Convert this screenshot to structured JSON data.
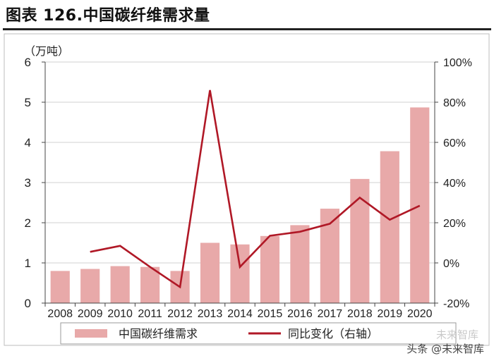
{
  "title": "图表 126.中国碳纤维需求量",
  "watermark": "头条 @未来智库",
  "watermark_ghost": "未来智库",
  "chart_data": {
    "type": "bar",
    "categories": [
      "2008",
      "2009",
      "2010",
      "2011",
      "2012",
      "2013",
      "2014",
      "2015",
      "2016",
      "2017",
      "2018",
      "2019",
      "2020"
    ],
    "series": [
      {
        "name": "中国碳纤维需求",
        "type": "bar",
        "axis": "left",
        "color": "#E8A9A9",
        "values": [
          0.8,
          0.85,
          0.92,
          0.9,
          0.8,
          1.5,
          1.46,
          1.67,
          1.94,
          2.35,
          3.09,
          3.78,
          4.87
        ]
      },
      {
        "name": "同比变化（右轴）",
        "type": "line",
        "axis": "right",
        "color": "#B01826",
        "values": [
          null,
          5.5,
          8.5,
          -2,
          -12,
          86,
          -2,
          13.5,
          15.5,
          19.5,
          32.5,
          21.5,
          28.5
        ]
      }
    ],
    "y_left": {
      "unit_label": "（万吨）",
      "ylim": [
        0,
        6
      ],
      "ticks": [
        "0",
        "1",
        "2",
        "3",
        "4",
        "5",
        "6"
      ]
    },
    "y_right": {
      "ylim": [
        -20,
        100
      ],
      "ticks": [
        "-20%",
        "0%",
        "20%",
        "40%",
        "60%",
        "80%",
        "100%"
      ]
    },
    "legend_position": "bottom",
    "grid": true
  }
}
